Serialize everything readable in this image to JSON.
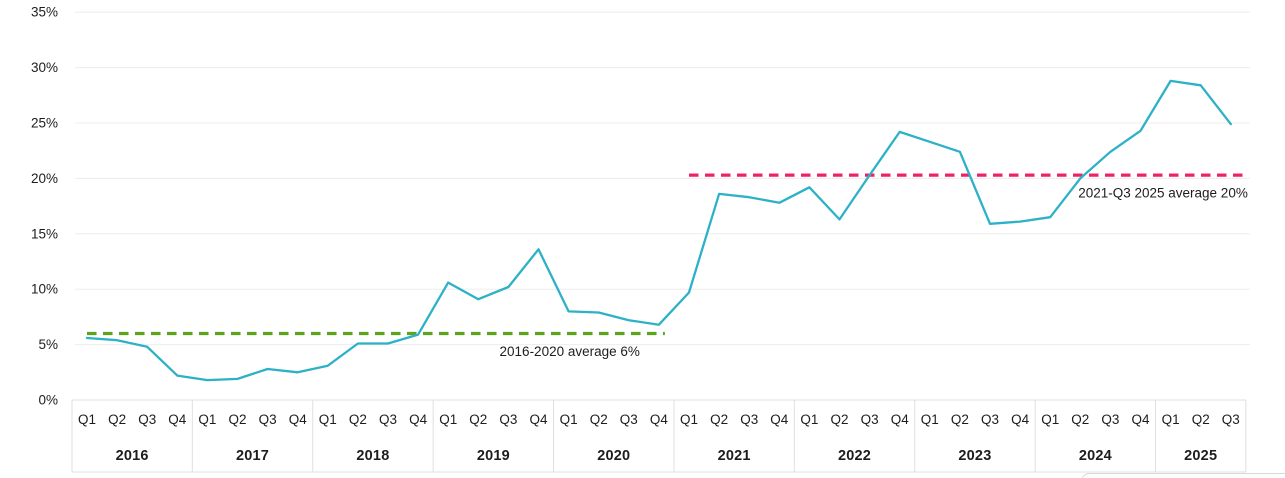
{
  "chart_data": {
    "type": "line",
    "title": "",
    "unit": "%",
    "grid": "horizontal",
    "legend_position": "none",
    "y_axis": {
      "min": 0,
      "max": 35,
      "step": 5,
      "ticks": [
        {
          "value": 0,
          "label": "0%"
        },
        {
          "value": 5,
          "label": "5%"
        },
        {
          "value": 10,
          "label": "10%"
        },
        {
          "value": 15,
          "label": "15%"
        },
        {
          "value": 20,
          "label": "20%"
        },
        {
          "value": 25,
          "label": "25%"
        },
        {
          "value": 30,
          "label": "30%"
        },
        {
          "value": 35,
          "label": "35%"
        }
      ]
    },
    "years": [
      {
        "year": "2016",
        "quarters": [
          "Q1",
          "Q2",
          "Q3",
          "Q4"
        ],
        "values": [
          5.6,
          5.4,
          4.8,
          2.2
        ]
      },
      {
        "year": "2017",
        "quarters": [
          "Q1",
          "Q2",
          "Q3",
          "Q4"
        ],
        "values": [
          1.8,
          1.9,
          2.8,
          2.5
        ]
      },
      {
        "year": "2018",
        "quarters": [
          "Q1",
          "Q2",
          "Q3",
          "Q4"
        ],
        "values": [
          3.1,
          5.1,
          5.1,
          5.9
        ]
      },
      {
        "year": "2019",
        "quarters": [
          "Q1",
          "Q2",
          "Q3",
          "Q4"
        ],
        "values": [
          10.6,
          9.1,
          10.2,
          13.6
        ]
      },
      {
        "year": "2020",
        "quarters": [
          "Q1",
          "Q2",
          "Q3",
          "Q4"
        ],
        "values": [
          8.0,
          7.9,
          7.2,
          6.8
        ]
      },
      {
        "year": "2021",
        "quarters": [
          "Q1",
          "Q2",
          "Q3",
          "Q4"
        ],
        "values": [
          9.7,
          18.6,
          18.3,
          17.8
        ]
      },
      {
        "year": "2022",
        "quarters": [
          "Q1",
          "Q2",
          "Q3",
          "Q4"
        ],
        "values": [
          19.2,
          16.3,
          20.3,
          24.2
        ]
      },
      {
        "year": "2023",
        "quarters": [
          "Q1",
          "Q2",
          "Q3",
          "Q4"
        ],
        "values": [
          23.3,
          22.4,
          15.9,
          16.1
        ]
      },
      {
        "year": "2024",
        "quarters": [
          "Q1",
          "Q2",
          "Q3",
          "Q4"
        ],
        "values": [
          16.5,
          20.0,
          22.4,
          24.3
        ]
      },
      {
        "year": "2025",
        "quarters": [
          "Q1",
          "Q2",
          "Q3"
        ],
        "values": [
          28.8,
          28.4,
          24.9
        ]
      }
    ],
    "annotations": [
      {
        "id": "avg-2016-2020",
        "label": "2016-2020 average 6%",
        "average_value": 6,
        "line_value": 6.0,
        "start_index": 0,
        "end_index": 19,
        "color": "#5CA41D"
      },
      {
        "id": "avg-2021-2025",
        "label": "2021-Q3 2025 average 20%",
        "average_value": 20,
        "line_value": 20.3,
        "start_index": 20,
        "end_index": 38,
        "color": "#EC2467"
      }
    ],
    "colors": {
      "line": "#2DB1C7",
      "avg_early": "#5CA41D",
      "avg_late": "#EC2467",
      "grid": "#ededed",
      "axis_border": "#dfdfdf",
      "text": "#1d1d1f"
    }
  }
}
